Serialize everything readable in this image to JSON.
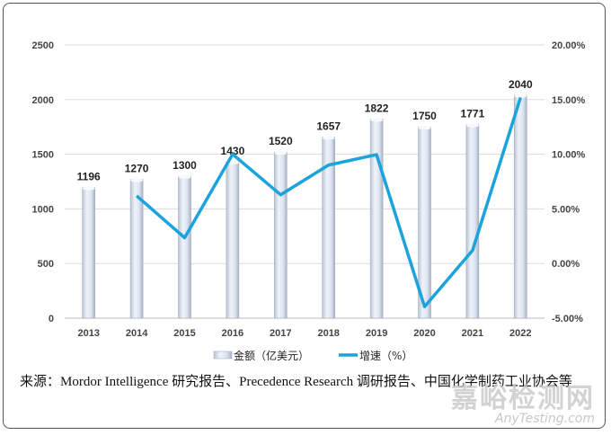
{
  "chart_data": {
    "type": "bar+line",
    "categories": [
      "2013",
      "2014",
      "2015",
      "2016",
      "2017",
      "2018",
      "2019",
      "2020",
      "2021",
      "2022"
    ],
    "series": [
      {
        "name": "金额（亿美元）",
        "type": "bar",
        "axis": "left",
        "values": [
          1196,
          1270,
          1300,
          1430,
          1520,
          1657,
          1822,
          1750,
          1771,
          2040
        ]
      },
      {
        "name": "增速（%）",
        "type": "line",
        "axis": "right",
        "values": [
          null,
          6.19,
          2.36,
          10.0,
          6.29,
          9.01,
          9.96,
          -3.95,
          1.2,
          15.19
        ]
      }
    ],
    "left_axis": {
      "ylim": [
        0,
        2500
      ],
      "ticks": [
        "0",
        "500",
        "1000",
        "1500",
        "2000",
        "2500"
      ]
    },
    "right_axis": {
      "ylim": [
        -5,
        20
      ],
      "ticks": [
        "-5.00%",
        "0.00%",
        "5.00%",
        "10.00%",
        "15.00%",
        "20.00%"
      ]
    },
    "grid": true,
    "legend": "bottom",
    "colors": {
      "bar": "#dde6f2",
      "line": "#1aa3dc"
    }
  },
  "source": "来源：Mordor Intelligence 研究报告、Precedence Research 调研报告、中国化学制药工业协会等",
  "watermark": {
    "cn": "嘉峪检测网",
    "en": "AnyTesting.com"
  }
}
